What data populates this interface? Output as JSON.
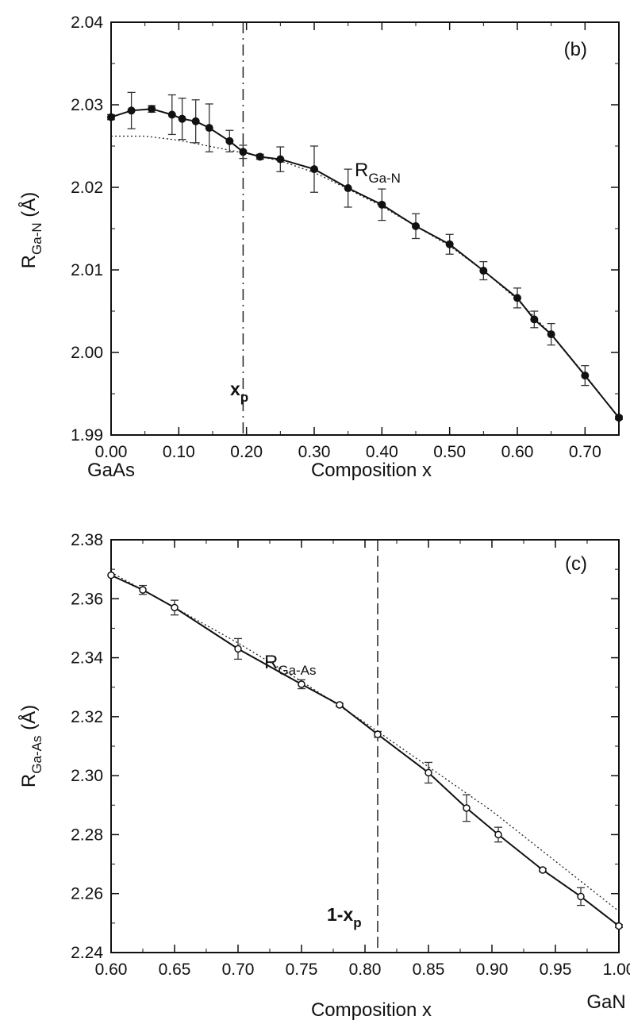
{
  "chart_data": [
    {
      "type": "line",
      "panel_label": "(b)",
      "xlabel": "Composition x",
      "x_endpoint_label": "GaAs",
      "ylabel": {
        "main": "R",
        "sub": "Ga-N",
        "unit": " (Å)"
      },
      "curve_label": {
        "main": "R",
        "sub": "Ga-N"
      },
      "vline_label": {
        "main": "x",
        "sub": "p"
      },
      "vline_x": 0.195,
      "xlim": [
        0.0,
        0.75
      ],
      "ylim": [
        1.99,
        2.04
      ],
      "xticks": [
        0.0,
        0.1,
        0.2,
        0.3,
        0.4,
        0.5,
        0.6,
        0.7
      ],
      "xtick_labels": [
        "0.00",
        "0.10",
        "0.20",
        "0.30",
        "0.40",
        "0.50",
        "0.60",
        "0.70"
      ],
      "yticks": [
        1.99,
        2.0,
        2.01,
        2.02,
        2.03,
        2.04
      ],
      "ytick_labels": [
        "1.99",
        "2.00",
        "2.01",
        "2.02",
        "2.03",
        "2.04"
      ],
      "marker": "filled",
      "series": [
        {
          "x": [
            0.0,
            0.03,
            0.06,
            0.09,
            0.105,
            0.125,
            0.145,
            0.175,
            0.195,
            0.22,
            0.25,
            0.3,
            0.35,
            0.4,
            0.45,
            0.5,
            0.55,
            0.6,
            0.625,
            0.65,
            0.7,
            0.75
          ],
          "y": [
            2.0285,
            2.0293,
            2.0295,
            2.0288,
            2.0283,
            2.028,
            2.0272,
            2.0256,
            2.0243,
            2.0237,
            2.0234,
            2.0222,
            2.0199,
            2.0179,
            2.0153,
            2.0131,
            2.0099,
            2.0066,
            2.004,
            2.0022,
            1.9972,
            1.9921
          ],
          "yerr": [
            0.0003,
            0.0022,
            0.0004,
            0.0024,
            0.0025,
            0.0026,
            0.0029,
            0.0013,
            0.0008,
            0.0003,
            0.0015,
            0.0028,
            0.0023,
            0.0019,
            0.0015,
            0.0012,
            0.0011,
            0.0012,
            0.001,
            0.0013,
            0.0012,
            0.0002
          ]
        }
      ],
      "dotted_curve": {
        "x": [
          0.0,
          0.05,
          0.1,
          0.15,
          0.2,
          0.25,
          0.3,
          0.35,
          0.4,
          0.45,
          0.5,
          0.55,
          0.6,
          0.65,
          0.7,
          0.75
        ],
        "y": [
          2.0262,
          2.0262,
          2.0257,
          2.0249,
          2.0241,
          2.0232,
          2.0218,
          2.0198,
          2.0177,
          2.0153,
          2.0129,
          2.0099,
          2.0064,
          2.0022,
          1.9973,
          1.9921
        ]
      }
    },
    {
      "type": "line",
      "panel_label": "(c)",
      "xlabel": "Composition x",
      "x_endpoint_label": "GaN",
      "ylabel": {
        "main": "R",
        "sub": "Ga-As",
        "unit": " (Å)"
      },
      "curve_label": {
        "main": "R",
        "sub": "Ga-As"
      },
      "vline_label": {
        "main": "1-x",
        "sub": "p"
      },
      "vline_x": 0.81,
      "xlim": [
        0.6,
        1.0
      ],
      "ylim": [
        2.24,
        2.38
      ],
      "xticks": [
        0.6,
        0.65,
        0.7,
        0.75,
        0.8,
        0.85,
        0.9,
        0.95,
        1.0
      ],
      "xtick_labels": [
        "0.60",
        "0.65",
        "0.70",
        "0.75",
        "0.80",
        "0.85",
        "0.90",
        "0.95",
        "1.00"
      ],
      "yticks": [
        2.24,
        2.26,
        2.28,
        2.3,
        2.32,
        2.34,
        2.36,
        2.38
      ],
      "ytick_labels": [
        "2.24",
        "2.26",
        "2.28",
        "2.30",
        "2.32",
        "2.34",
        "2.36",
        "2.38"
      ],
      "marker": "open",
      "series": [
        {
          "x": [
            0.6,
            0.625,
            0.65,
            0.7,
            0.75,
            0.78,
            0.81,
            0.85,
            0.88,
            0.905,
            0.94,
            0.97,
            1.0
          ],
          "y": [
            2.368,
            2.363,
            2.357,
            2.343,
            2.331,
            2.324,
            2.314,
            2.301,
            2.289,
            2.28,
            2.268,
            2.259,
            2.249
          ],
          "yerr": [
            0.0,
            0.0015,
            0.0025,
            0.0035,
            0.0015,
            0.0005,
            0.001,
            0.0035,
            0.0045,
            0.0025,
            0.0005,
            0.003,
            0.0005
          ]
        }
      ],
      "dotted_curve": {
        "x": [
          0.6,
          0.65,
          0.7,
          0.75,
          0.8,
          0.85,
          0.9,
          0.95,
          1.0
        ],
        "y": [
          2.369,
          2.357,
          2.345,
          2.332,
          2.318,
          2.303,
          2.288,
          2.271,
          2.254
        ]
      }
    }
  ]
}
